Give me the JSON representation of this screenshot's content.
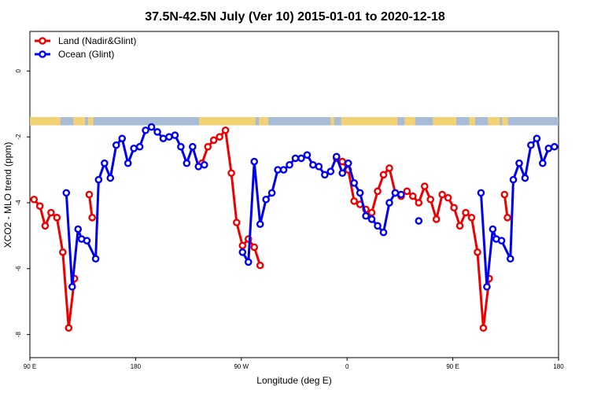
{
  "chart_data": {
    "type": "line",
    "title": "37.5N-42.5N July (Ver 10)   2015-01-01 to 2020-12-18",
    "xlabel": "Longitude (deg E)",
    "ylabel": "XCO2 - MLO trend (ppm)",
    "xlim": [
      90,
      540
    ],
    "ylim": [
      -8.7,
      1.2
    ],
    "x_ticks": [
      {
        "value": 90,
        "label": "90 E"
      },
      {
        "value": 180,
        "label": "180"
      },
      {
        "value": 270,
        "label": "90 W"
      },
      {
        "value": 360,
        "label": "0"
      },
      {
        "value": 450,
        "label": "90 E"
      },
      {
        "value": 540,
        "label": "180"
      }
    ],
    "y_ticks": [
      {
        "value": 0,
        "label": "0"
      },
      {
        "value": -2,
        "label": "-2"
      },
      {
        "value": -4,
        "label": "-4"
      },
      {
        "value": -6,
        "label": "-6"
      },
      {
        "value": -8,
        "label": "-8"
      }
    ],
    "legend_position": "top-left",
    "map_strip": {
      "y_top": -1.4,
      "y_bottom": -1.65,
      "ocean_color": "#a8bcd8",
      "land_color": "#f2d272"
    },
    "series": [
      {
        "name": "Land (Nadir&Glint)",
        "color": "#ee0000",
        "segments": [
          [
            [
              93.5,
              -3.9
            ],
            [
              98.5,
              -4.1
            ],
            [
              103,
              -4.7
            ],
            [
              108,
              -4.3
            ],
            [
              113,
              -4.45
            ],
            [
              118,
              -5.5
            ],
            [
              123,
              -7.8
            ],
            [
              128,
              -6.3
            ]
          ],
          [
            [
              140.5,
              -3.75
            ],
            [
              143,
              -4.45
            ]
          ],
          [
            [
              236.5,
              -2.8
            ],
            [
              241.5,
              -2.3
            ],
            [
              246.5,
              -2.1
            ],
            [
              251.5,
              -2
            ],
            [
              256.5,
              -1.8
            ],
            [
              261.5,
              -3.1
            ],
            [
              266,
              -4.6
            ],
            [
              271,
              -5.3
            ],
            [
              276,
              -5.1
            ],
            [
              281,
              -5.35
            ],
            [
              286,
              -5.9
            ]
          ],
          [
            [
              351,
              -2.65
            ],
            [
              356,
              -2.75
            ],
            [
              361,
              -3
            ],
            [
              366,
              -3.95
            ],
            [
              371,
              -4.05
            ],
            [
              376,
              -4.2
            ],
            [
              381,
              -4.3
            ],
            [
              386,
              -3.65
            ],
            [
              391,
              -3.15
            ],
            [
              396,
              -2.95
            ],
            [
              401,
              -3.7
            ],
            [
              406,
              -3.8
            ],
            [
              411,
              -3.65
            ],
            [
              416,
              -3.8
            ],
            [
              421,
              -4
            ],
            [
              426,
              -3.5
            ],
            [
              431,
              -3.9
            ],
            [
              436,
              -4.5
            ],
            [
              441,
              -3.75
            ],
            [
              446,
              -3.85
            ],
            [
              451,
              -4.15
            ],
            [
              456,
              -4.7
            ],
            [
              461,
              -4.3
            ],
            [
              466,
              -4.45
            ],
            [
              471,
              -5.5
            ],
            [
              476,
              -7.8
            ],
            [
              481,
              -6.3
            ]
          ],
          [
            [
              494,
              -3.75
            ],
            [
              496.5,
              -4.45
            ]
          ]
        ]
      },
      {
        "name": "Ocean (Glint)",
        "color": "#0000ee",
        "segments": [
          [
            [
              121,
              -3.7
            ],
            [
              126,
              -6.55
            ],
            [
              131,
              -4.8
            ],
            [
              134,
              -5.1
            ],
            [
              138.5,
              -5.15
            ],
            [
              146,
              -5.7
            ],
            [
              148.5,
              -3.3
            ],
            [
              153.5,
              -2.8
            ],
            [
              158.5,
              -3.25
            ],
            [
              163.5,
              -2.25
            ],
            [
              168.5,
              -2.05
            ],
            [
              173.5,
              -2.8
            ],
            [
              178.5,
              -2.35
            ],
            [
              183.5,
              -2.3
            ],
            [
              188.5,
              -1.8
            ],
            [
              193.5,
              -1.7
            ],
            [
              198.5,
              -1.85
            ],
            [
              203.5,
              -2.05
            ],
            [
              208.5,
              -2
            ],
            [
              213.5,
              -1.95
            ],
            [
              218.5,
              -2.3
            ],
            [
              223.5,
              -2.8
            ],
            [
              228.5,
              -2.3
            ],
            [
              233.5,
              -2.9
            ],
            [
              238.5,
              -2.85
            ]
          ],
          [
            [
              271,
              -5.5
            ],
            [
              276,
              -5.8
            ],
            [
              281,
              -2.75
            ],
            [
              286,
              -4.65
            ],
            [
              291,
              -3.9
            ],
            [
              296,
              -3.7
            ],
            [
              301,
              -3
            ],
            [
              306,
              -3
            ],
            [
              311,
              -2.85
            ],
            [
              316,
              -2.65
            ],
            [
              321,
              -2.65
            ],
            [
              326,
              -2.55
            ],
            [
              331,
              -2.85
            ],
            [
              336,
              -2.9
            ],
            [
              341,
              -3.15
            ],
            [
              346,
              -3.05
            ],
            [
              351,
              -2.6
            ],
            [
              356,
              -3.1
            ],
            [
              361,
              -2.8
            ],
            [
              366,
              -3.4
            ],
            [
              371,
              -3.7
            ],
            [
              376,
              -4.4
            ],
            [
              381,
              -4.5
            ],
            [
              386,
              -4.7
            ],
            [
              391,
              -4.9
            ],
            [
              396,
              -4
            ],
            [
              401,
              -3.7
            ],
            [
              406,
              -3.75
            ]
          ],
          [
            [
              421,
              -4.55
            ]
          ],
          [
            [
              474,
              -3.7
            ],
            [
              479,
              -6.55
            ],
            [
              484,
              -4.8
            ],
            [
              487,
              -5.1
            ],
            [
              491.5,
              -5.15
            ],
            [
              499,
              -5.7
            ],
            [
              501.5,
              -3.3
            ],
            [
              506.5,
              -2.8
            ],
            [
              511.5,
              -3.25
            ],
            [
              516.5,
              -2.25
            ],
            [
              521.5,
              -2.05
            ],
            [
              526.5,
              -2.8
            ],
            [
              531.5,
              -2.35
            ],
            [
              536.5,
              -2.3
            ]
          ]
        ]
      }
    ]
  }
}
